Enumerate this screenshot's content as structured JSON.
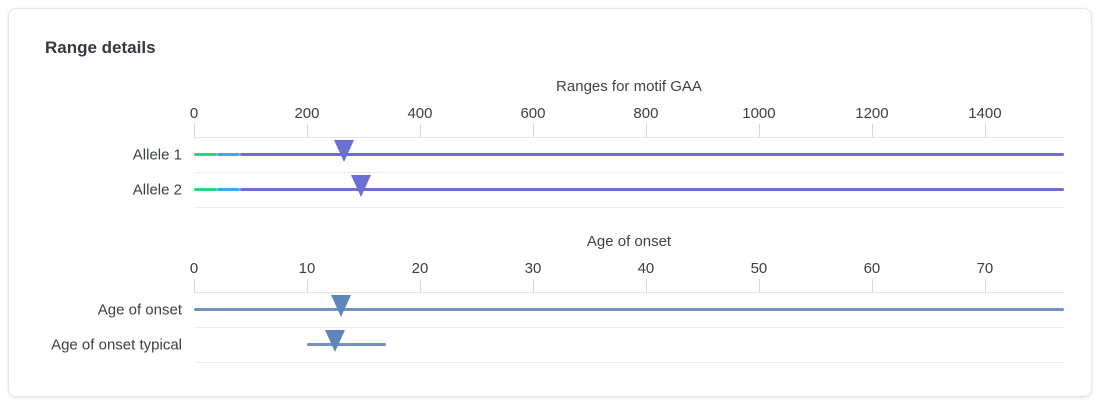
{
  "title": "Range details",
  "colors": {
    "normal_range": "#23d984",
    "intermediate_range": "#3fa8f2",
    "pathogenic_range": "#6e6ed2",
    "motif_marker": "#6a6fd1",
    "age_range": "#7291c1",
    "age_marker": "#5e86bb"
  },
  "chart_data": [
    {
      "type": "range",
      "title": "Ranges for motif GAA",
      "xlim": [
        0,
        1540
      ],
      "ticks": [
        0,
        200,
        400,
        600,
        800,
        1000,
        1200,
        1400
      ],
      "rows": [
        {
          "label": "Allele 1",
          "segments": [
            {
              "from": 0,
              "to": 40,
              "color": "#23d984",
              "name": "normal-range"
            },
            {
              "from": 40,
              "to": 82,
              "color": "#3fa8f2",
              "name": "intermediate-range"
            },
            {
              "from": 82,
              "to": 1540,
              "color": "#6e6ed2",
              "name": "pathogenic-range"
            }
          ],
          "marker": {
            "value": 265,
            "color": "#6a6fd1"
          }
        },
        {
          "label": "Allele 2",
          "segments": [
            {
              "from": 0,
              "to": 40,
              "color": "#23d984",
              "name": "normal-range"
            },
            {
              "from": 40,
              "to": 82,
              "color": "#3fa8f2",
              "name": "intermediate-range"
            },
            {
              "from": 82,
              "to": 1540,
              "color": "#6e6ed2",
              "name": "pathogenic-range"
            }
          ],
          "marker": {
            "value": 295,
            "color": "#6a6fd1"
          }
        }
      ]
    },
    {
      "type": "range",
      "title": "Age of onset",
      "xlim": [
        0,
        77
      ],
      "ticks": [
        0,
        10,
        20,
        30,
        40,
        50,
        60,
        70
      ],
      "rows": [
        {
          "label": "Age of onset",
          "segments": [
            {
              "from": 0,
              "to": 77,
              "color": "#7291c1",
              "name": "age-of-onset-range"
            }
          ],
          "marker": {
            "value": 13,
            "color": "#5e86bb"
          }
        },
        {
          "label": "Age of onset typical",
          "segments": [
            {
              "from": 10,
              "to": 17,
              "color": "#7291c1",
              "name": "age-of-onset-typical-range"
            }
          ],
          "marker": {
            "value": 12.5,
            "color": "#5e86bb"
          }
        }
      ]
    }
  ]
}
